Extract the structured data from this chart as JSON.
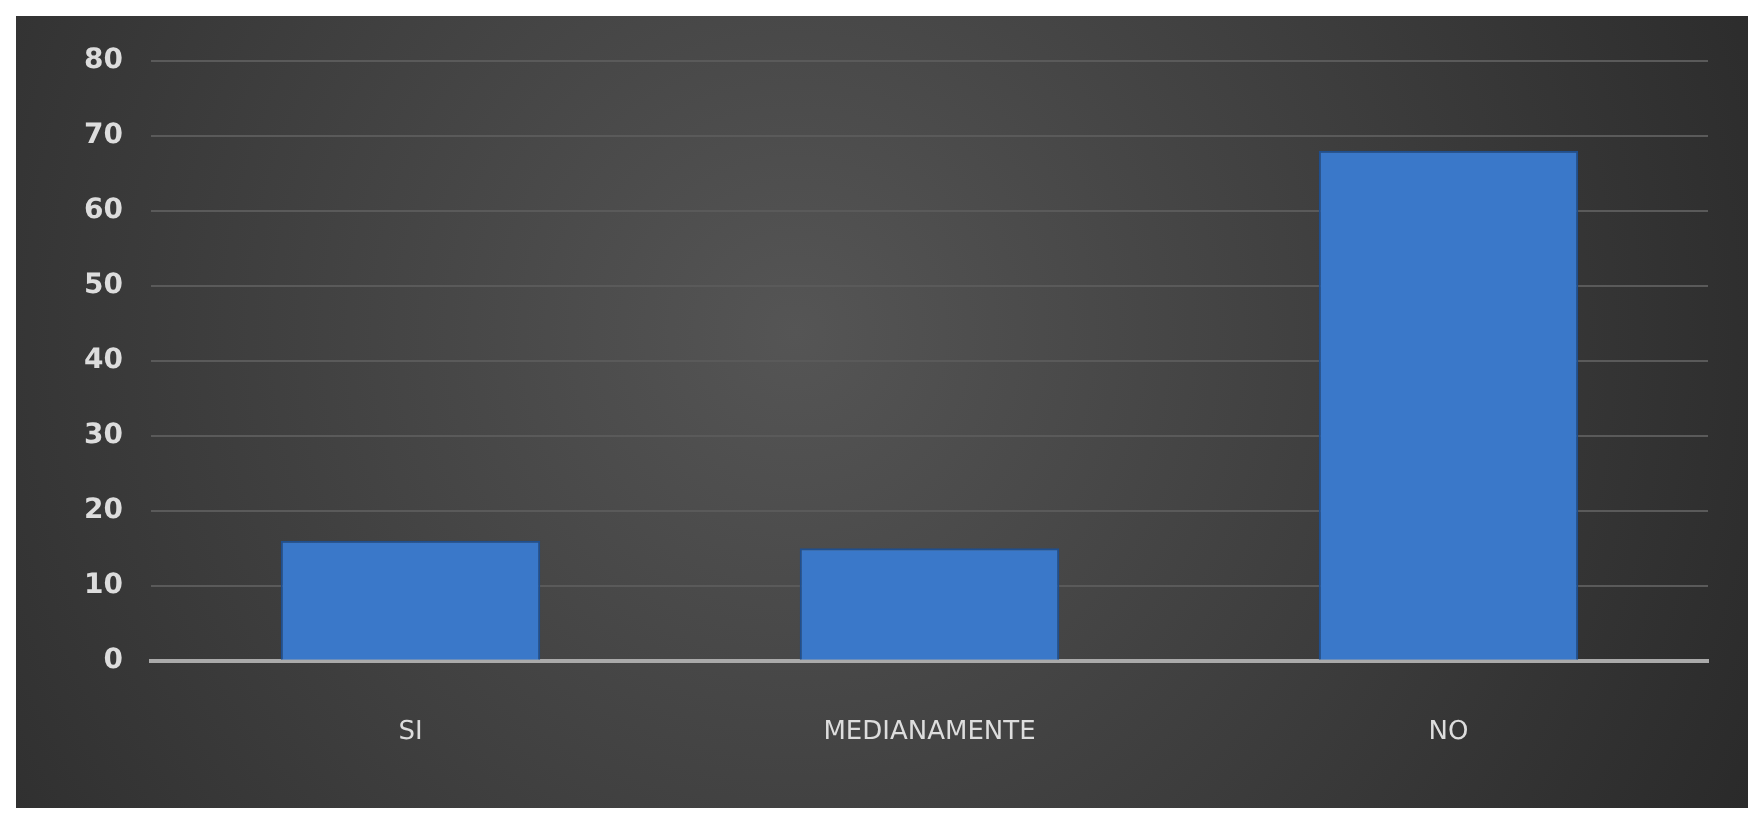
{
  "chart_data": {
    "type": "bar",
    "categories": [
      "SI",
      "MEDIANAMENTE",
      "NO"
    ],
    "values": [
      16,
      15,
      68
    ],
    "color": "#3a78c9",
    "ylim": [
      0,
      80
    ],
    "yticks": [
      0,
      10,
      20,
      30,
      40,
      50,
      60,
      70,
      80
    ],
    "grid": "y"
  }
}
